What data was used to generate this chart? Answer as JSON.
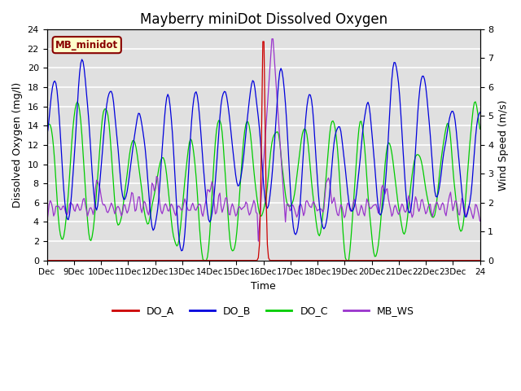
{
  "title": "Mayberry miniDot Dissolved Oxygen",
  "xlabel": "Time",
  "ylabel_left": "Dissolved Oxygen (mg/l)",
  "ylabel_right": "Wind Speed (m/s)",
  "ylim_left": [
    0,
    24
  ],
  "ylim_right": [
    0.0,
    8.0
  ],
  "yticks_left": [
    0,
    2,
    4,
    6,
    8,
    10,
    12,
    14,
    16,
    18,
    20,
    22,
    24
  ],
  "yticks_right": [
    0.0,
    1.0,
    2.0,
    3.0,
    4.0,
    5.0,
    6.0,
    7.0,
    8.0
  ],
  "xtick_labels": [
    "Dec",
    "9Dec",
    "10Dec",
    "11Dec",
    "12Dec",
    "13Dec",
    "14Dec",
    "15Dec",
    "16Dec",
    "17Dec",
    "18Dec",
    "19Dec",
    "20Dec",
    "21Dec",
    "22Dec",
    "23Dec",
    "24"
  ],
  "legend_box_text": "MB_minidot",
  "legend_box_color": "#880000",
  "legend_box_bg": "#ffffcc",
  "colors": {
    "DO_A": "#cc0000",
    "DO_B": "#0000dd",
    "DO_C": "#00cc00",
    "MB_WS": "#9933cc"
  },
  "background_color": "#e0e0e0",
  "grid_color": "#ffffff",
  "title_fontsize": 12,
  "axis_fontsize": 9,
  "tick_fontsize": 8
}
